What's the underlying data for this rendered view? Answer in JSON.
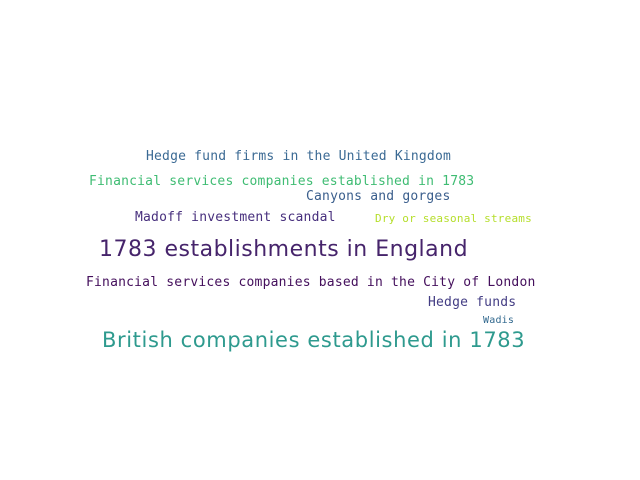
{
  "words": [
    {
      "text": "Hedge fund firms in the United Kingdom",
      "color": "#3b6a94"
    },
    {
      "text": "Financial services companies established in 1783",
      "color": "#3fbc73"
    },
    {
      "text": "Canyons and gorges",
      "color": "#3a5e8c"
    },
    {
      "text": "Madoff investment scandal",
      "color": "#472f7d"
    },
    {
      "text": "Dry or seasonal streams",
      "color": "#b5de2b"
    },
    {
      "text": "1783 establishments in England",
      "color": "#46246b"
    },
    {
      "text": "Financial services companies based in the City of London",
      "color": "#440f5c"
    },
    {
      "text": "Hedge funds",
      "color": "#433d84"
    },
    {
      "text": "Wadis",
      "color": "#31688e"
    },
    {
      "text": "British companies established in 1783",
      "color": "#2e9a8e"
    }
  ]
}
